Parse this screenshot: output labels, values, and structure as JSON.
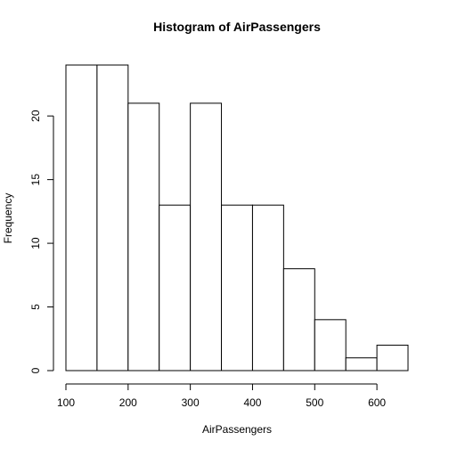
{
  "chart_data": {
    "type": "bar",
    "subtype": "histogram",
    "title": "Histogram of AirPassengers",
    "xlabel": "AirPassengers",
    "ylabel": "Frequency",
    "bins": [
      {
        "start": 100,
        "end": 150,
        "count": 24
      },
      {
        "start": 150,
        "end": 200,
        "count": 24
      },
      {
        "start": 200,
        "end": 250,
        "count": 21
      },
      {
        "start": 250,
        "end": 300,
        "count": 13
      },
      {
        "start": 300,
        "end": 350,
        "count": 21
      },
      {
        "start": 350,
        "end": 400,
        "count": 13
      },
      {
        "start": 400,
        "end": 450,
        "count": 13
      },
      {
        "start": 450,
        "end": 500,
        "count": 8
      },
      {
        "start": 500,
        "end": 550,
        "count": 4
      },
      {
        "start": 550,
        "end": 600,
        "count": 1
      },
      {
        "start": 600,
        "end": 650,
        "count": 2
      }
    ],
    "xlim": [
      100,
      650
    ],
    "ylim": [
      0,
      24
    ],
    "x_ticks": [
      "100",
      "200",
      "300",
      "400",
      "500",
      "600"
    ],
    "y_ticks": [
      "0",
      "5",
      "10",
      "15",
      "20"
    ],
    "grid": false,
    "legend": "none"
  }
}
